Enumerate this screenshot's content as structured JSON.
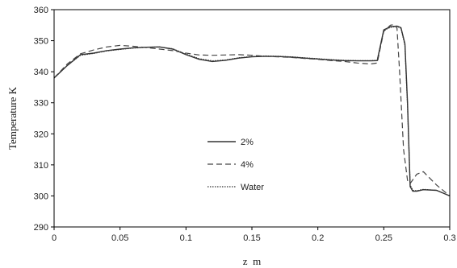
{
  "chart_data": {
    "type": "line",
    "title": "",
    "xlabel": "z  m",
    "ylabel": "Temperature K",
    "xlim": [
      0,
      0.3
    ],
    "ylim": [
      290,
      360
    ],
    "xticks": [
      0,
      0.05,
      0.1,
      0.15,
      0.2,
      0.25,
      0.3
    ],
    "xtick_labels": [
      "0",
      "0.05",
      "0.1",
      "0.15",
      "0.2",
      "0.25",
      "0.3"
    ],
    "yticks": [
      290,
      300,
      310,
      320,
      330,
      340,
      350,
      360
    ],
    "ytick_labels": [
      "290",
      "300",
      "310",
      "320",
      "330",
      "340",
      "350",
      "360"
    ],
    "grid": false,
    "legend_position": "center-left",
    "series": [
      {
        "name": "2%",
        "style": "solid",
        "color": "#333333",
        "x": [
          0,
          0.01,
          0.02,
          0.03,
          0.04,
          0.05,
          0.06,
          0.07,
          0.08,
          0.09,
          0.1,
          0.11,
          0.12,
          0.13,
          0.14,
          0.15,
          0.16,
          0.17,
          0.18,
          0.19,
          0.2,
          0.21,
          0.22,
          0.23,
          0.24,
          0.245,
          0.25,
          0.255,
          0.26,
          0.263,
          0.266,
          0.268,
          0.27,
          0.272,
          0.275,
          0.28,
          0.29,
          0.3
        ],
        "y": [
          338,
          342,
          345.5,
          346,
          346.8,
          347.3,
          347.7,
          347.9,
          348,
          347.3,
          345.5,
          344,
          343.3,
          343.7,
          344.4,
          344.8,
          345,
          344.9,
          344.7,
          344.4,
          344.1,
          343.8,
          343.6,
          343.5,
          343.5,
          343.6,
          353.5,
          354.5,
          354.7,
          354.2,
          349,
          330,
          303,
          301.5,
          301.5,
          302,
          301.8,
          300
        ]
      },
      {
        "name": "4%",
        "style": "dashed",
        "color": "#444444",
        "x": [
          0,
          0.01,
          0.02,
          0.03,
          0.04,
          0.05,
          0.06,
          0.07,
          0.08,
          0.09,
          0.1,
          0.11,
          0.12,
          0.13,
          0.14,
          0.15,
          0.16,
          0.17,
          0.18,
          0.19,
          0.2,
          0.21,
          0.22,
          0.23,
          0.24,
          0.245,
          0.25,
          0.255,
          0.258,
          0.26,
          0.262,
          0.265,
          0.268,
          0.27,
          0.275,
          0.28,
          0.29,
          0.3
        ],
        "y": [
          338,
          342.5,
          345.8,
          347,
          348,
          348.5,
          348.2,
          347.8,
          347.3,
          346.8,
          346,
          345.4,
          345.3,
          345.4,
          345.5,
          345.3,
          345,
          344.8,
          344.6,
          344.3,
          344,
          343.6,
          343.3,
          342.8,
          342.5,
          342.8,
          353,
          355,
          355.2,
          354,
          340,
          315,
          305,
          304,
          307,
          307.8,
          303.5,
          300
        ]
      },
      {
        "name": "Water",
        "style": "dotted",
        "color": "#333333",
        "x": [
          0,
          0.01,
          0.02,
          0.03,
          0.04,
          0.05,
          0.06,
          0.07,
          0.08,
          0.09,
          0.1,
          0.11,
          0.12,
          0.13,
          0.14,
          0.15,
          0.16,
          0.17,
          0.18,
          0.19,
          0.2,
          0.21,
          0.22,
          0.23,
          0.24,
          0.245,
          0.25,
          0.255,
          0.26,
          0.263,
          0.266,
          0.268,
          0.27,
          0.272,
          0.275,
          0.28,
          0.29,
          0.3
        ],
        "y": [
          338,
          342,
          345.3,
          345.9,
          346.7,
          347.2,
          347.6,
          347.9,
          348,
          347.4,
          345.7,
          344.2,
          343.5,
          343.8,
          344.5,
          344.9,
          345.1,
          345,
          344.8,
          344.5,
          344.2,
          343.9,
          343.7,
          343.6,
          343.6,
          343.7,
          353.3,
          354.3,
          354.6,
          354,
          348.5,
          329,
          303.5,
          301.8,
          301.7,
          302.1,
          301.8,
          300
        ]
      }
    ]
  }
}
